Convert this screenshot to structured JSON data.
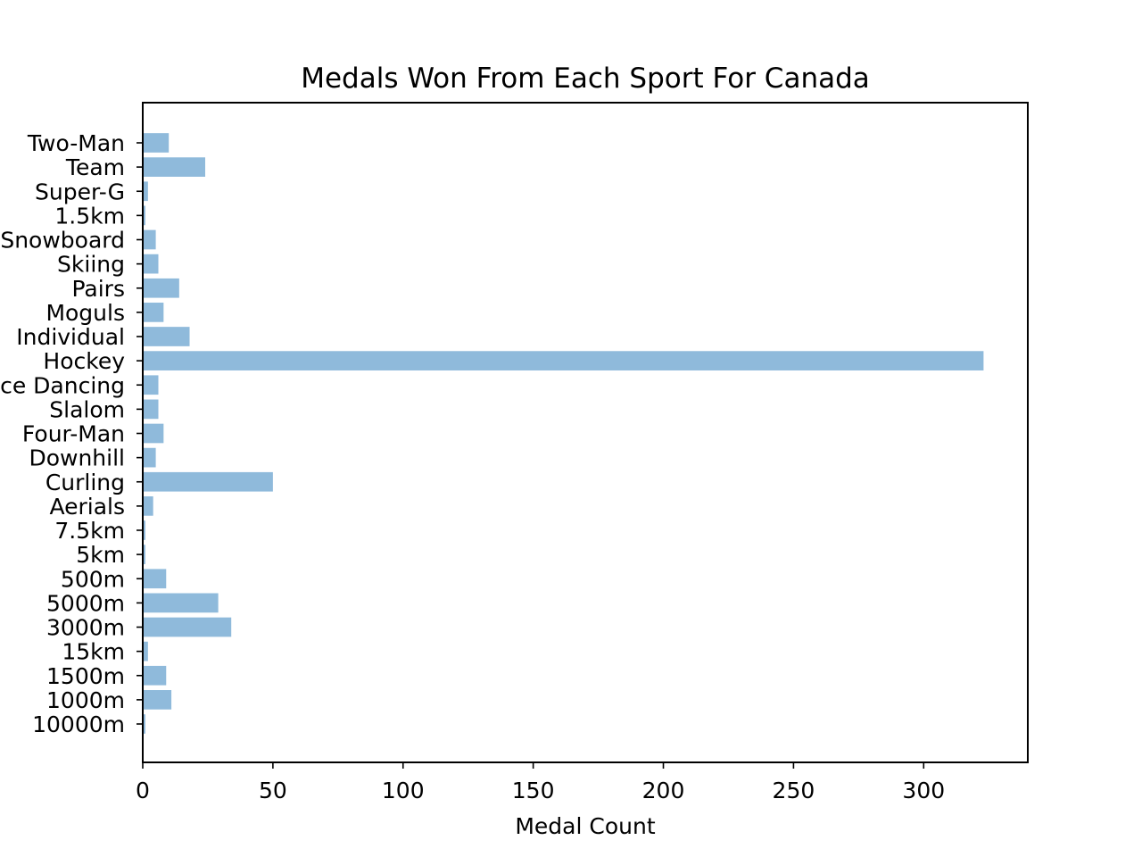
{
  "chart_data": {
    "type": "bar",
    "orientation": "horizontal",
    "title": "Medals Won From Each Sport For Canada",
    "xlabel": "Medal Count",
    "ylabel": "",
    "categories": [
      "10000m",
      "1000m",
      "1500m",
      "15km",
      "3000m",
      "5000m",
      "500m",
      "5km",
      "7.5km",
      "Aerials",
      "Curling",
      "Downhill",
      "Four-Man",
      "Slalom",
      "Ice Dancing",
      "Hockey",
      "Individual",
      "Moguls",
      "Pairs",
      "Skiing",
      "Snowboard",
      "1.5km",
      "Super-G",
      "Team",
      "Two-Man"
    ],
    "values": [
      1,
      11,
      9,
      2,
      34,
      29,
      9,
      1,
      1,
      4,
      50,
      5,
      8,
      6,
      6,
      323,
      18,
      8,
      14,
      6,
      5,
      1,
      2,
      24,
      10
    ],
    "xlim": [
      0,
      340
    ],
    "xticks": [
      0,
      50,
      100,
      150,
      200,
      250,
      300
    ],
    "bar_color": "#8fbadb",
    "grid": false,
    "legend": "none"
  }
}
